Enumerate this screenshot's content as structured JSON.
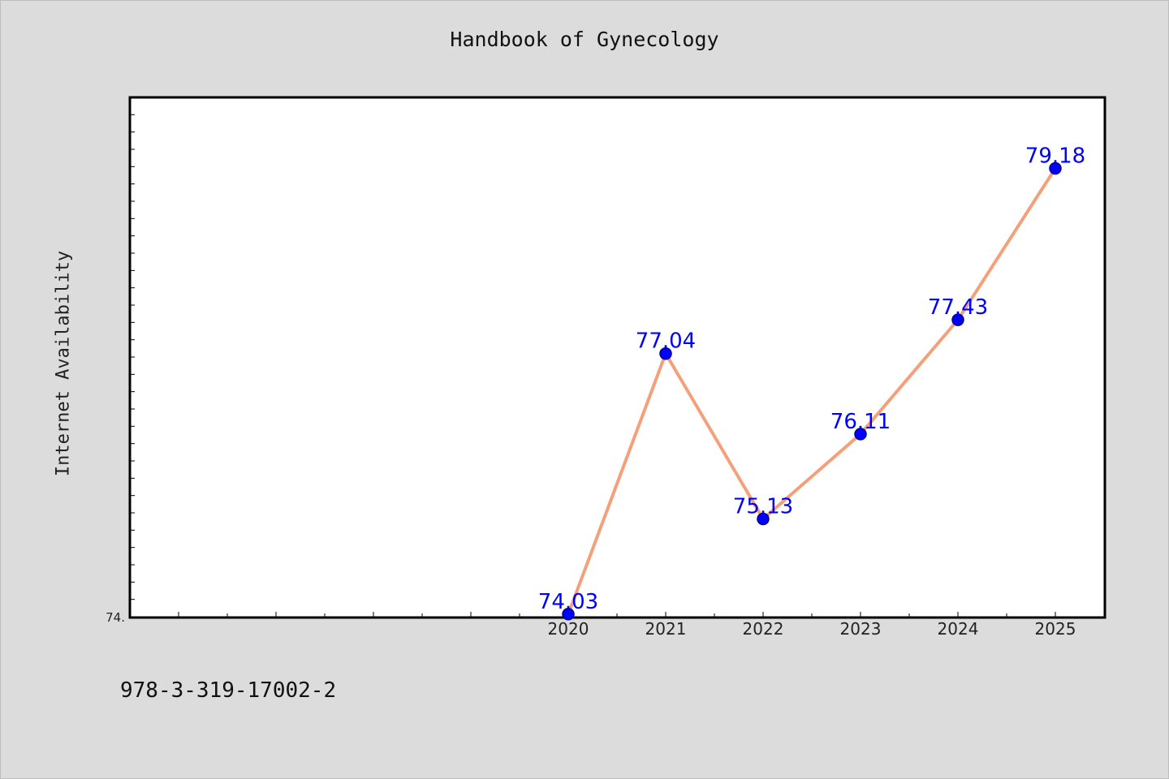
{
  "title": "Handbook of Gynecology",
  "isbn": "978-3-319-17002-2",
  "chart_data": {
    "type": "line",
    "title": "Handbook of Gynecology",
    "xlabel": "",
    "ylabel": "Internet Availability",
    "x": [
      2020,
      2021,
      2022,
      2023,
      2024,
      2025
    ],
    "x_tick_labels": [
      "2020",
      "2021",
      "2022",
      "2023",
      "2024",
      "2025"
    ],
    "xlim": [
      2015.5,
      2025.5
    ],
    "ylim": [
      74.0,
      80.0
    ],
    "y_tick_label": "74.",
    "series": [
      {
        "values": [
          74.03,
          77.04,
          75.13,
          76.11,
          77.43,
          79.18
        ],
        "data_labels": [
          "74.03",
          "77.04",
          "75.13",
          "76.11",
          "77.43",
          "79.18"
        ]
      }
    ],
    "grid": false,
    "legend": "none",
    "colors": {
      "line": "#f4a07a",
      "marker": "#0000ff",
      "marker_edge": "#00008b",
      "data_label": "#0000ff",
      "background": "#dcdcdc",
      "plot_background": "#ffffff"
    }
  }
}
